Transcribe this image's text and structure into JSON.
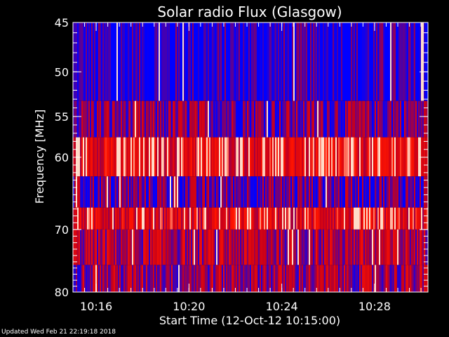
{
  "chart_data": {
    "type": "heatmap",
    "title": "Solar radio Flux (Glasgow)",
    "xlabel": "Start Time (12-Oct-12 10:15:00)",
    "ylabel": "Frequency [MHz]",
    "xlim_minutes_after_start": [
      0,
      15.3
    ],
    "ylim_mhz": [
      45,
      80
    ],
    "y_axis_inverted": true,
    "y_scale": "log",
    "x_ticks": [
      {
        "label": "10:16",
        "minutes_after_start": 1
      },
      {
        "label": "10:20",
        "minutes_after_start": 5
      },
      {
        "label": "10:24",
        "minutes_after_start": 9
      },
      {
        "label": "10:28",
        "minutes_after_start": 13
      }
    ],
    "y_ticks": [
      {
        "label": "45",
        "value": 45
      },
      {
        "label": "50",
        "value": 50
      },
      {
        "label": "55",
        "value": 55
      },
      {
        "label": "60",
        "value": 60
      },
      {
        "label": "70",
        "value": 70
      },
      {
        "label": "80",
        "value": 80
      }
    ],
    "bands_mhz": [
      {
        "from": 45,
        "to": 53.2,
        "intensity": 0.05
      },
      {
        "from": 53.2,
        "to": 57.5,
        "intensity": 0.3
      },
      {
        "from": 57.5,
        "to": 62.5,
        "intensity": 0.75
      },
      {
        "from": 62.5,
        "to": 66.8,
        "intensity": 0.25
      },
      {
        "from": 66.8,
        "to": 70.0,
        "intensity": 0.7
      },
      {
        "from": 70.0,
        "to": 75.5,
        "intensity": 0.45
      },
      {
        "from": 75.5,
        "to": 80,
        "intensity": 0.4
      }
    ],
    "colors": {
      "low": "#0000ff",
      "mid": "#cc0000",
      "high": "#ffcccc",
      "axis": "#ffffff",
      "background": "#000000"
    }
  },
  "footer": {
    "updated_text": "Updated Wed Feb 21 22:19:18 2018"
  }
}
